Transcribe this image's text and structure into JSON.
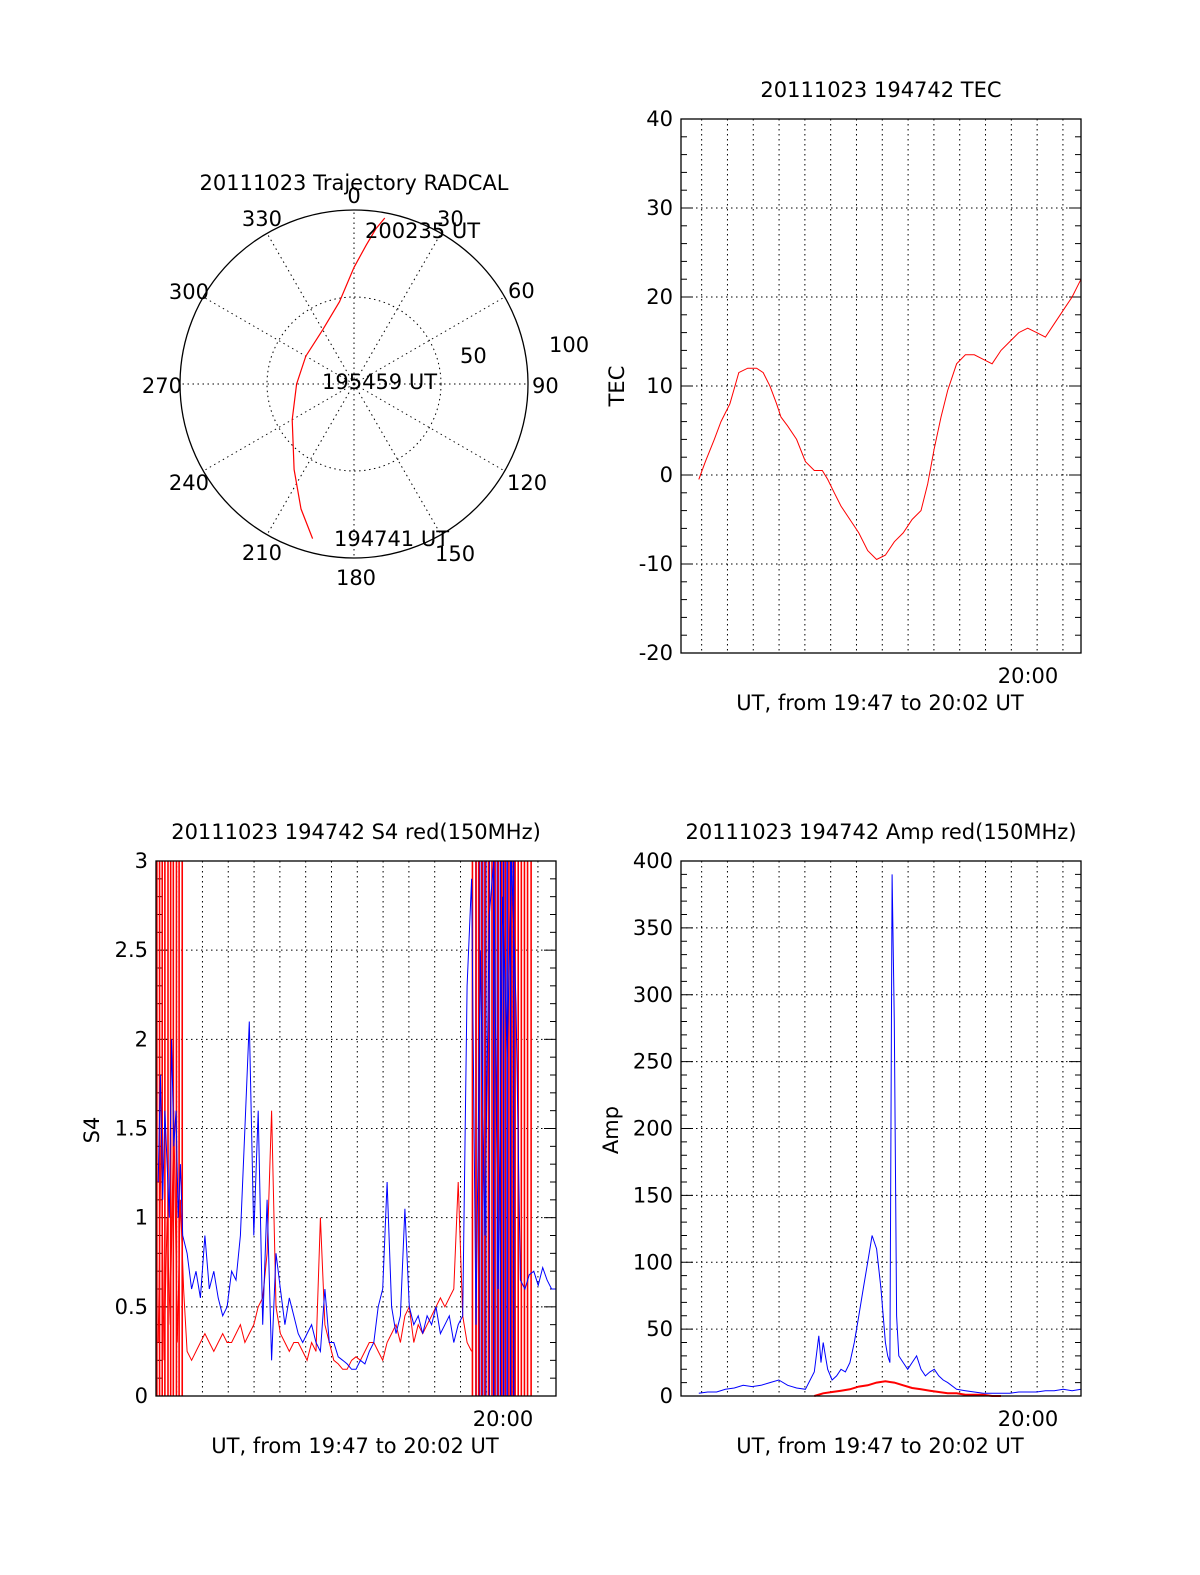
{
  "colors": {
    "red": "#ff0000",
    "blue": "#0000ff",
    "axis": "#000000"
  },
  "chart_data": [
    {
      "type": "polar",
      "title": "20111023 Trajectory RADCAL",
      "azimuth_labels": [
        "0",
        "30",
        "60",
        "90",
        "120",
        "150",
        "180",
        "210",
        "240",
        "270",
        "300",
        "330"
      ],
      "ring_labels": [
        "50",
        "100"
      ],
      "trajectory": {
        "color": "#ff0000",
        "azimuth_deg": [
          10.5,
          8,
          5,
          0,
          350,
          330,
          300,
          270,
          240,
          215,
          203,
          195
        ],
        "radius": [
          97,
          90,
          80,
          67,
          48,
          36,
          32,
          33,
          41,
          60,
          78,
          92
        ],
        "labels": [
          "200235 UT",
          "195459 UT",
          "194741 UT"
        ]
      }
    },
    {
      "type": "line",
      "title": "20111023 194742 TEC",
      "ylabel": "TEC",
      "xlabel": "UT, from 19:47 to 20:02 UT",
      "x_tick_label": "20:00",
      "ylim": [
        -20,
        40
      ],
      "y_ticks": [
        "-20",
        "-10",
        "0",
        "10",
        "20",
        "30",
        "40"
      ],
      "xlim_seconds": [
        0,
        900
      ],
      "series": [
        {
          "color": "#ff0000",
          "x": [
            40,
            55,
            75,
            90,
            110,
            130,
            150,
            170,
            185,
            200,
            215,
            225,
            240,
            260,
            280,
            300,
            318,
            330,
            345,
            360,
            380,
            400,
            420,
            440,
            460,
            480,
            500,
            520,
            540,
            555,
            570,
            585,
            600,
            620,
            640,
            660,
            680,
            700,
            720,
            740,
            760,
            780,
            800,
            820,
            840,
            860,
            880,
            900
          ],
          "y": [
            -0.5,
            1.5,
            4,
            6,
            8,
            11.5,
            12,
            12,
            11.5,
            10,
            8,
            6.5,
            5.5,
            4,
            1.5,
            0.5,
            0.5,
            -0.5,
            -2,
            -3.5,
            -5,
            -6.5,
            -8.5,
            -9.5,
            -9,
            -7.5,
            -6.5,
            -5,
            -4,
            -1,
            3,
            6.5,
            9.5,
            12.5,
            13.5,
            13.5,
            13,
            12.5,
            14,
            15,
            16,
            16.5,
            16,
            15.5,
            17,
            18.5,
            20,
            22
          ]
        }
      ]
    },
    {
      "type": "line",
      "title": "20111023 194742 S4 red(150MHz)",
      "ylabel": "S4",
      "xlabel": "UT, from 19:47 to 20:02 UT",
      "x_tick_label": "20:00",
      "ylim": [
        0,
        3
      ],
      "y_ticks": [
        "0",
        "0.5",
        "1",
        "1.5",
        "2",
        "2.5",
        "3"
      ],
      "xlim_seconds": [
        0,
        900
      ],
      "series": [
        {
          "color": "#0000ff",
          "x": [
            5,
            10,
            15,
            20,
            25,
            30,
            35,
            40,
            45,
            50,
            55,
            60,
            70,
            80,
            90,
            100,
            110,
            120,
            130,
            140,
            150,
            160,
            170,
            180,
            190,
            200,
            210,
            220,
            230,
            240,
            250,
            260,
            270,
            280,
            290,
            300,
            310,
            320,
            330,
            340,
            350,
            360,
            370,
            380,
            390,
            400,
            410,
            420,
            430,
            440,
            450,
            460,
            470,
            480,
            490,
            500,
            510,
            520,
            530,
            540,
            550,
            560,
            570,
            580,
            590,
            600,
            610,
            620,
            630,
            640,
            650,
            660,
            670,
            680,
            690,
            700,
            710,
            720,
            730,
            740,
            750,
            760,
            770,
            780,
            790,
            800,
            810,
            820,
            830,
            840,
            850,
            860,
            870,
            880,
            890,
            900
          ],
          "y": [
            1.2,
            1.8,
            1.1,
            1.6,
            1.3,
            1.0,
            2.0,
            1.4,
            1.6,
            1.0,
            1.3,
            0.9,
            0.8,
            0.6,
            0.7,
            0.55,
            0.9,
            0.6,
            0.7,
            0.55,
            0.45,
            0.5,
            0.7,
            0.65,
            0.9,
            1.5,
            2.1,
            0.9,
            1.6,
            0.4,
            1.1,
            0.2,
            0.8,
            0.6,
            0.4,
            0.55,
            0.45,
            0.35,
            0.3,
            0.35,
            0.4,
            0.3,
            0.25,
            0.6,
            0.3,
            0.3,
            0.22,
            0.2,
            0.18,
            0.15,
            0.15,
            0.2,
            0.18,
            0.25,
            0.3,
            0.5,
            0.6,
            1.2,
            0.5,
            0.35,
            0.45,
            1.05,
            0.5,
            0.4,
            0.45,
            0.35,
            0.45,
            0.4,
            0.5,
            0.35,
            0.4,
            0.45,
            0.3,
            0.4,
            0.45,
            2.3,
            2.9,
            0.4,
            2.5,
            0.9,
            2.7,
            3,
            0.6,
            2.8,
            1.9,
            3,
            2.2,
            0.65,
            0.6,
            0.68,
            0.7,
            0.62,
            0.72,
            0.65,
            0.6,
            0.6
          ],
          "spikes_x": [
            720,
            728,
            735,
            742,
            750,
            760,
            768,
            775,
            782,
            790,
            798,
            805
          ]
        },
        {
          "color": "#ff0000",
          "x": [
            5,
            12,
            18,
            25,
            32,
            40,
            48,
            55,
            62,
            70,
            80,
            90,
            100,
            110,
            120,
            130,
            140,
            150,
            160,
            170,
            180,
            190,
            200,
            210,
            220,
            230,
            240,
            250,
            260,
            270,
            280,
            290,
            300,
            310,
            320,
            330,
            340,
            350,
            360,
            370,
            380,
            390,
            400,
            410,
            420,
            430,
            440,
            450,
            460,
            470,
            480,
            490,
            500,
            510,
            520,
            530,
            540,
            550,
            560,
            570,
            580,
            590,
            600,
            610,
            620,
            630,
            640,
            650,
            660,
            670,
            680,
            690,
            700,
            710
          ],
          "y": [
            0.3,
            1.5,
            0.2,
            1.0,
            0.4,
            1.6,
            0.3,
            1.1,
            0.6,
            0.25,
            0.2,
            0.25,
            0.3,
            0.35,
            0.3,
            0.25,
            0.3,
            0.35,
            0.3,
            0.3,
            0.35,
            0.4,
            0.3,
            0.35,
            0.4,
            0.5,
            0.55,
            0.8,
            1.6,
            0.5,
            0.35,
            0.3,
            0.25,
            0.3,
            0.3,
            0.25,
            0.2,
            0.3,
            0.25,
            1.0,
            0.4,
            0.3,
            0.2,
            0.18,
            0.15,
            0.15,
            0.2,
            0.22,
            0.2,
            0.25,
            0.3,
            0.3,
            0.25,
            0.2,
            0.3,
            0.35,
            0.4,
            0.3,
            0.45,
            0.5,
            0.3,
            0.4,
            0.35,
            0.4,
            0.45,
            0.5,
            0.55,
            0.5,
            0.55,
            0.6,
            1.2,
            0.45,
            0.3,
            0.25
          ],
          "spikes_x": [
            2,
            8,
            14,
            20,
            27,
            33,
            39,
            46,
            52,
            59,
            712,
            720,
            726,
            733,
            740,
            748,
            756,
            763,
            770,
            778,
            786,
            794,
            801,
            808,
            815,
            822,
            829,
            836,
            844
          ]
        }
      ]
    },
    {
      "type": "line",
      "title": "20111023 194742 Amp red(150MHz)",
      "ylabel": "Amp",
      "xlabel": "UT, from 19:47 to 20:02 UT",
      "x_tick_label": "20:00",
      "ylim": [
        0,
        400
      ],
      "y_ticks": [
        "0",
        "50",
        "100",
        "150",
        "200",
        "250",
        "300",
        "350",
        "400"
      ],
      "xlim_seconds": [
        0,
        900
      ],
      "series": [
        {
          "color": "#0000ff",
          "x": [
            40,
            60,
            80,
            100,
            120,
            140,
            160,
            180,
            200,
            220,
            240,
            260,
            280,
            300,
            310,
            315,
            320,
            325,
            330,
            340,
            350,
            360,
            370,
            380,
            390,
            400,
            410,
            420,
            430,
            440,
            450,
            455,
            460,
            465,
            470,
            475,
            480,
            485,
            490,
            500,
            510,
            520,
            530,
            540,
            550,
            560,
            570,
            580,
            590,
            600,
            620,
            640,
            660,
            680,
            700,
            720,
            740,
            760,
            780,
            800,
            820,
            840,
            860,
            880,
            900
          ],
          "y": [
            2,
            3,
            3,
            5,
            6,
            8,
            7,
            8,
            10,
            12,
            8,
            6,
            5,
            18,
            45,
            25,
            40,
            30,
            20,
            12,
            15,
            20,
            18,
            25,
            40,
            60,
            80,
            100,
            120,
            110,
            80,
            60,
            40,
            30,
            25,
            390,
            280,
            60,
            30,
            25,
            20,
            25,
            30,
            20,
            15,
            18,
            20,
            15,
            12,
            10,
            5,
            4,
            3,
            2,
            2,
            2,
            2,
            3,
            3,
            3,
            4,
            4,
            5,
            4,
            5
          ]
        },
        {
          "color": "#ff0000",
          "x": [
            300,
            320,
            340,
            360,
            380,
            400,
            420,
            440,
            460,
            480,
            500,
            520,
            540,
            560,
            580,
            600,
            620,
            640,
            660,
            680,
            700,
            720
          ],
          "y": [
            0,
            2,
            3,
            4,
            5,
            7,
            8,
            10,
            11,
            10,
            8,
            6,
            5,
            4,
            3,
            2,
            2,
            1,
            1,
            1,
            0,
            0
          ]
        }
      ]
    }
  ]
}
